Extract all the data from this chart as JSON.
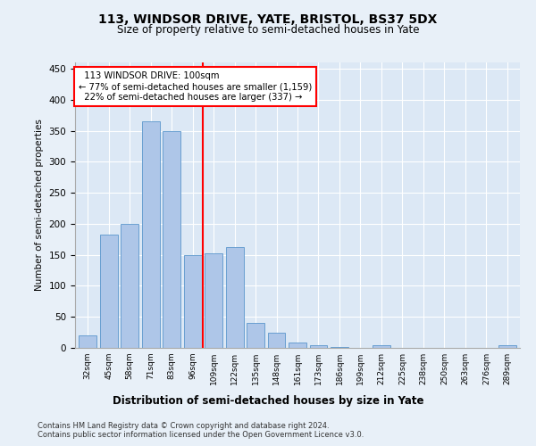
{
  "title1": "113, WINDSOR DRIVE, YATE, BRISTOL, BS37 5DX",
  "title2": "Size of property relative to semi-detached houses in Yate",
  "xlabel": "Distribution of semi-detached houses by size in Yate",
  "ylabel": "Number of semi-detached properties",
  "categories": [
    "32sqm",
    "45sqm",
    "58sqm",
    "71sqm",
    "83sqm",
    "96sqm",
    "109sqm",
    "122sqm",
    "135sqm",
    "148sqm",
    "161sqm",
    "173sqm",
    "186sqm",
    "199sqm",
    "212sqm",
    "225sqm",
    "238sqm",
    "250sqm",
    "263sqm",
    "276sqm",
    "289sqm"
  ],
  "values": [
    20,
    183,
    200,
    365,
    350,
    150,
    152,
    163,
    40,
    24,
    9,
    5,
    1,
    0,
    4,
    0,
    0,
    0,
    0,
    0,
    4
  ],
  "bar_color": "#aec6e8",
  "bar_edge_color": "#5a96cc",
  "ref_line_x": 5.5,
  "ref_line_label": "113 WINDSOR DRIVE: 100sqm",
  "pct_smaller": "77%",
  "n_smaller": "1,159",
  "pct_larger": "22%",
  "n_larger": "337",
  "annotation_box_color": "#cc0000",
  "ylim": [
    0,
    460
  ],
  "yticks": [
    0,
    50,
    100,
    150,
    200,
    250,
    300,
    350,
    400,
    450
  ],
  "footer1": "Contains HM Land Registry data © Crown copyright and database right 2024.",
  "footer2": "Contains public sector information licensed under the Open Government Licence v3.0.",
  "bg_color": "#e8f0f8",
  "plot_bg": "#dce8f5"
}
